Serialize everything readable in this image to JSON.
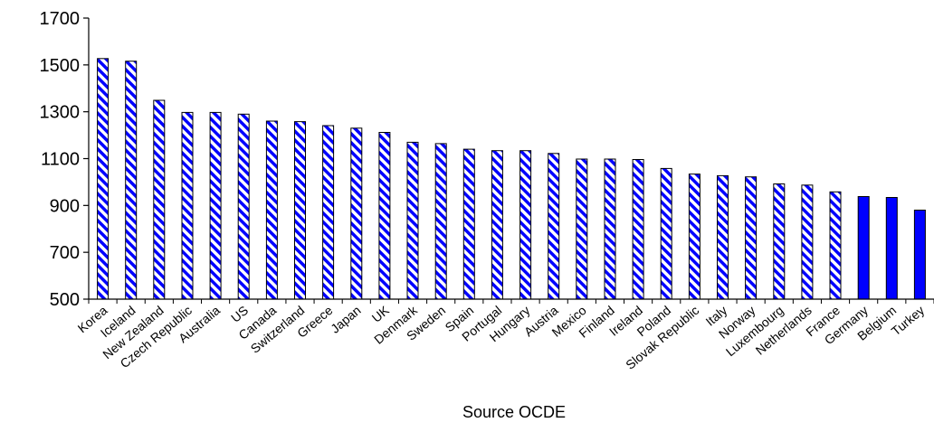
{
  "chart_data": {
    "type": "bar",
    "categories": [
      "Korea",
      "Iceland",
      "New Zealand",
      "Czech Republic",
      "Australia",
      "US",
      "Canada",
      "Switzerland",
      "Greece",
      "Japan",
      "UK",
      "Denmark",
      "Sweden",
      "Spain",
      "Portugal",
      "Hungary",
      "Austria",
      "Mexico",
      "Finland",
      "Ireland",
      "Poland",
      "Slovak Republic",
      "Italy",
      "Norway",
      "Luxembourg",
      "Netherlands",
      "France",
      "Germany",
      "Belgium",
      "Turkey"
    ],
    "values": [
      1527,
      1516,
      1349,
      1297,
      1297,
      1290,
      1260,
      1258,
      1241,
      1230,
      1212,
      1170,
      1164,
      1140,
      1134,
      1134,
      1122,
      1098,
      1098,
      1096,
      1058,
      1034,
      1027,
      1022,
      992,
      987,
      958,
      938,
      934,
      880
    ],
    "highlighted": [
      "Germany",
      "Belgium",
      "Turkey"
    ],
    "ylim": [
      500,
      1700
    ],
    "yticks": [
      500,
      700,
      900,
      1100,
      1300,
      1500,
      1700
    ],
    "xlabel": "Source OCDE",
    "ylabel": "",
    "title": "",
    "grid": false,
    "colors": {
      "bar": "#0000ff",
      "hatch_bg": "#ffffff",
      "outline": "#000000"
    }
  }
}
